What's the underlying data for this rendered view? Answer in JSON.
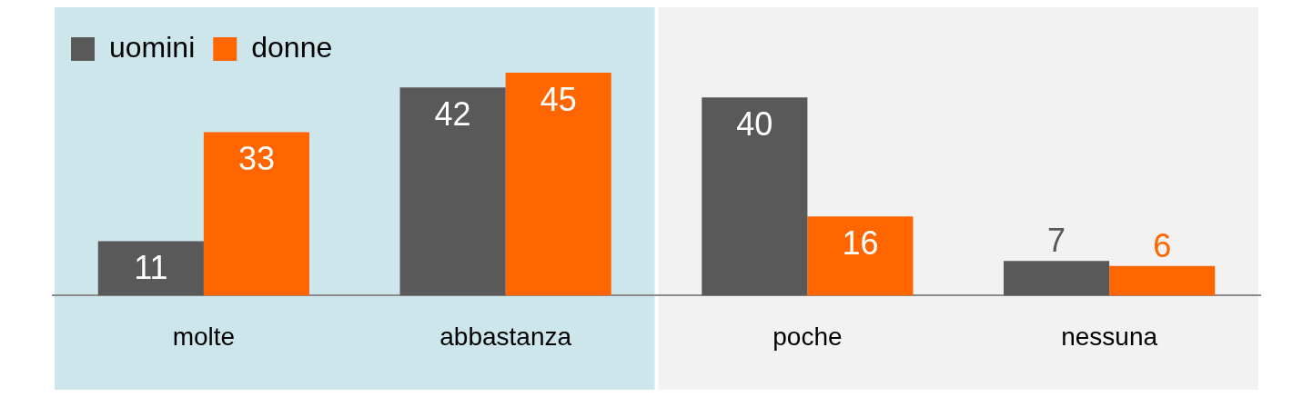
{
  "chart_data": {
    "type": "bar",
    "categories": [
      "molte",
      "abbastanza",
      "poche",
      "nessuna"
    ],
    "series": [
      {
        "name": "uomini",
        "color": "#595959",
        "values": [
          11,
          42,
          40,
          7
        ]
      },
      {
        "name": "donne",
        "color": "#ff6600",
        "values": [
          33,
          45,
          16,
          6
        ]
      }
    ],
    "bands": [
      {
        "axis": "x",
        "from": "molte",
        "to": "abbastanza",
        "color": "#cde6ec"
      },
      {
        "axis": "x",
        "from": "poche",
        "to": "nessuna",
        "color": "#f2f2f2"
      }
    ],
    "data_labels": true,
    "legend": "top left",
    "grid": false
  }
}
